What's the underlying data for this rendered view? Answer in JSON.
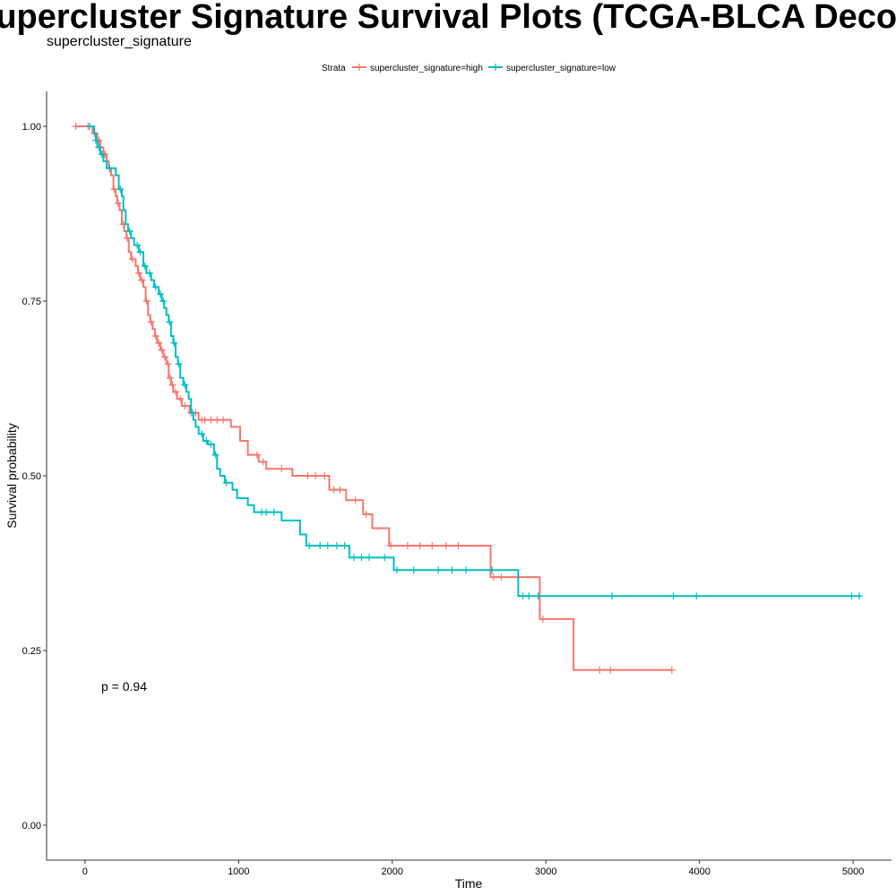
{
  "chart_data": {
    "type": "line",
    "title": "Supercluster Signature Survival Plots (TCGA-BLCA Deconvolved)",
    "subtitle": "supercluster_signature",
    "xlabel": "Time",
    "ylabel": "Survival probability",
    "xlim": [
      -250,
      5250
    ],
    "ylim": [
      -0.05,
      1.05
    ],
    "x_ticks": [
      0,
      1000,
      2000,
      3000,
      4000,
      5000
    ],
    "y_ticks": [
      0,
      0.25,
      0.5,
      0.75,
      1
    ],
    "x_tick_labels": [
      "0",
      "1000",
      "2000",
      "3000",
      "4000",
      "5000"
    ],
    "y_tick_labels": [
      "0.00",
      "0.25",
      "0.50",
      "0.75",
      "1.00"
    ],
    "legend": {
      "title": "Strata",
      "position": "top"
    },
    "annotation": "p = 0.94",
    "grid": false,
    "series": [
      {
        "name": "supercluster_signature=high",
        "color": "#f8766d",
        "steps": [
          [
            -60,
            1.0
          ],
          [
            50,
            0.99
          ],
          [
            80,
            0.98
          ],
          [
            100,
            0.97
          ],
          [
            120,
            0.96
          ],
          [
            140,
            0.95
          ],
          [
            155,
            0.94
          ],
          [
            170,
            0.93
          ],
          [
            185,
            0.91
          ],
          [
            200,
            0.9
          ],
          [
            210,
            0.89
          ],
          [
            225,
            0.88
          ],
          [
            240,
            0.86
          ],
          [
            255,
            0.85
          ],
          [
            270,
            0.84
          ],
          [
            285,
            0.82
          ],
          [
            300,
            0.81
          ],
          [
            330,
            0.8
          ],
          [
            345,
            0.79
          ],
          [
            360,
            0.78
          ],
          [
            380,
            0.77
          ],
          [
            395,
            0.75
          ],
          [
            410,
            0.73
          ],
          [
            425,
            0.72
          ],
          [
            440,
            0.71
          ],
          [
            455,
            0.7
          ],
          [
            470,
            0.69
          ],
          [
            490,
            0.68
          ],
          [
            510,
            0.67
          ],
          [
            530,
            0.66
          ],
          [
            545,
            0.64
          ],
          [
            560,
            0.63
          ],
          [
            575,
            0.62
          ],
          [
            600,
            0.61
          ],
          [
            630,
            0.6
          ],
          [
            680,
            0.59
          ],
          [
            740,
            0.58
          ],
          [
            950,
            0.57
          ],
          [
            1010,
            0.55
          ],
          [
            1060,
            0.53
          ],
          [
            1130,
            0.52
          ],
          [
            1180,
            0.51
          ],
          [
            1350,
            0.5
          ],
          [
            1590,
            0.48
          ],
          [
            1700,
            0.465
          ],
          [
            1810,
            0.445
          ],
          [
            1870,
            0.425
          ],
          [
            1980,
            0.4
          ],
          [
            2640,
            0.355
          ],
          [
            2960,
            0.295
          ],
          [
            3180,
            0.222
          ],
          [
            3820,
            0.222
          ]
        ],
        "censor_times": [
          -60,
          20,
          60,
          90,
          130,
          160,
          190,
          215,
          250,
          275,
          310,
          350,
          370,
          400,
          430,
          460,
          480,
          500,
          520,
          540,
          555,
          570,
          590,
          620,
          650,
          690,
          720,
          760,
          780,
          820,
          860,
          900,
          1120,
          1160,
          1280,
          1450,
          1500,
          1560,
          1620,
          1660,
          1760,
          1830,
          1990,
          2100,
          2180,
          2260,
          2350,
          2430,
          2660,
          2710,
          2980,
          3350,
          3420,
          3820
        ]
      },
      {
        "name": "supercluster_signature=low",
        "color": "#00bfc4",
        "steps": [
          [
            30,
            1.0
          ],
          [
            60,
            0.99
          ],
          [
            70,
            0.98
          ],
          [
            80,
            0.97
          ],
          [
            100,
            0.96
          ],
          [
            120,
            0.95
          ],
          [
            140,
            0.94
          ],
          [
            200,
            0.93
          ],
          [
            220,
            0.91
          ],
          [
            240,
            0.9
          ],
          [
            250,
            0.88
          ],
          [
            265,
            0.86
          ],
          [
            280,
            0.85
          ],
          [
            300,
            0.84
          ],
          [
            320,
            0.83
          ],
          [
            350,
            0.82
          ],
          [
            380,
            0.8
          ],
          [
            400,
            0.79
          ],
          [
            430,
            0.78
          ],
          [
            450,
            0.77
          ],
          [
            480,
            0.76
          ],
          [
            500,
            0.75
          ],
          [
            515,
            0.74
          ],
          [
            530,
            0.73
          ],
          [
            545,
            0.72
          ],
          [
            560,
            0.7
          ],
          [
            575,
            0.69
          ],
          [
            590,
            0.67
          ],
          [
            605,
            0.66
          ],
          [
            620,
            0.64
          ],
          [
            640,
            0.63
          ],
          [
            660,
            0.62
          ],
          [
            675,
            0.61
          ],
          [
            690,
            0.59
          ],
          [
            705,
            0.58
          ],
          [
            720,
            0.57
          ],
          [
            740,
            0.56
          ],
          [
            770,
            0.55
          ],
          [
            800,
            0.545
          ],
          [
            840,
            0.53
          ],
          [
            860,
            0.51
          ],
          [
            880,
            0.5
          ],
          [
            910,
            0.49
          ],
          [
            960,
            0.48
          ],
          [
            990,
            0.468
          ],
          [
            1060,
            0.458
          ],
          [
            1100,
            0.448
          ],
          [
            1280,
            0.436
          ],
          [
            1400,
            0.416
          ],
          [
            1440,
            0.4
          ],
          [
            1720,
            0.383
          ],
          [
            2010,
            0.365
          ],
          [
            2820,
            0.328
          ],
          [
            5050,
            0.328
          ]
        ],
        "censor_times": [
          30,
          70,
          90,
          110,
          160,
          230,
          290,
          340,
          360,
          390,
          420,
          460,
          490,
          510,
          550,
          580,
          610,
          650,
          700,
          760,
          790,
          820,
          850,
          920,
          1150,
          1180,
          1230,
          1460,
          1530,
          1580,
          1640,
          1690,
          1750,
          1800,
          1850,
          1950,
          2030,
          2140,
          2300,
          2390,
          2480,
          2650,
          2850,
          2890,
          2950,
          3430,
          3830,
          3980,
          4990,
          5040
        ]
      }
    ]
  }
}
